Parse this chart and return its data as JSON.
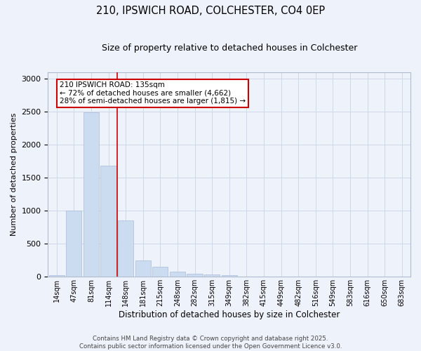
{
  "title1": "210, IPSWICH ROAD, COLCHESTER, CO4 0EP",
  "title2": "Size of property relative to detached houses in Colchester",
  "xlabel": "Distribution of detached houses by size in Colchester",
  "ylabel": "Number of detached properties",
  "categories": [
    "14sqm",
    "47sqm",
    "81sqm",
    "114sqm",
    "148sqm",
    "181sqm",
    "215sqm",
    "248sqm",
    "282sqm",
    "315sqm",
    "349sqm",
    "382sqm",
    "415sqm",
    "449sqm",
    "482sqm",
    "516sqm",
    "549sqm",
    "583sqm",
    "616sqm",
    "650sqm",
    "683sqm"
  ],
  "values": [
    20,
    1000,
    2490,
    1680,
    850,
    250,
    150,
    80,
    50,
    30,
    20,
    8,
    4,
    3,
    2,
    2,
    1,
    1,
    1,
    1,
    1
  ],
  "bar_color": "#ccdcf0",
  "bar_edge_color": "#aabbd8",
  "grid_color": "#d0d8e8",
  "background_color": "#eef2fa",
  "vline_x": 3.5,
  "vline_color": "#cc0000",
  "annotation_text": "210 IPSWICH ROAD: 135sqm\n← 72% of detached houses are smaller (4,662)\n28% of semi-detached houses are larger (1,815) →",
  "annotation_box_color": "#cc0000",
  "annotation_bg": "#ffffff",
  "ylim": [
    0,
    3100
  ],
  "yticks": [
    0,
    500,
    1000,
    1500,
    2000,
    2500,
    3000
  ],
  "footer1": "Contains HM Land Registry data © Crown copyright and database right 2025.",
  "footer2": "Contains public sector information licensed under the Open Government Licence v3.0."
}
